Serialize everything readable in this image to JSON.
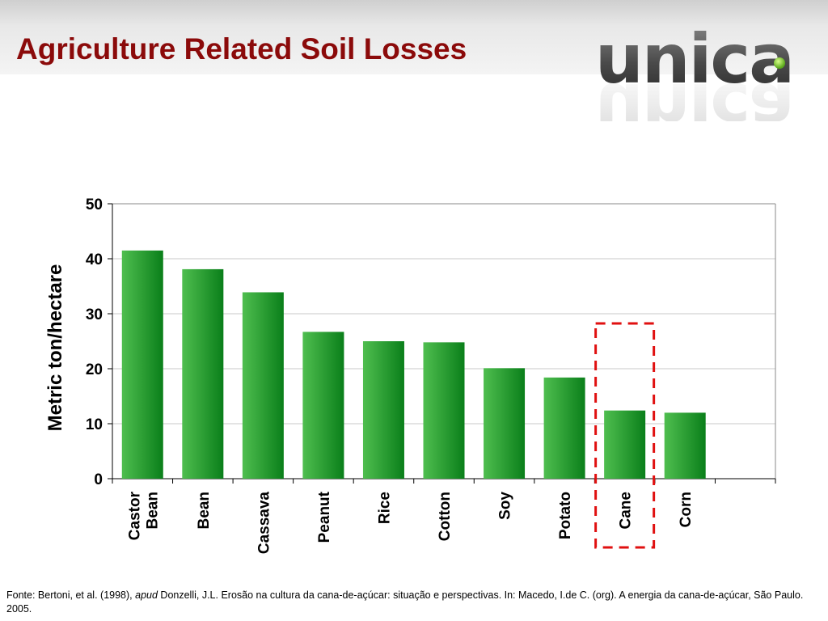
{
  "slide": {
    "title": "Agriculture Related Soil Losses",
    "logo_text": "unica"
  },
  "chart_data": {
    "type": "bar",
    "title": "",
    "xlabel": "",
    "ylabel": "Metric ton/hectare",
    "ylim": [
      0,
      50
    ],
    "yticks": [
      0,
      10,
      20,
      30,
      40,
      50
    ],
    "grid": true,
    "categories": [
      [
        "Castor",
        "Bean"
      ],
      [
        "Bean"
      ],
      [
        "Cassava"
      ],
      [
        "Peanut"
      ],
      [
        "Rice"
      ],
      [
        "Cotton"
      ],
      [
        "Soy"
      ],
      [
        "Potato"
      ],
      [
        "Cane"
      ],
      [
        "Corn"
      ]
    ],
    "values": [
      41.5,
      38.1,
      33.9,
      26.7,
      25.0,
      24.8,
      20.1,
      18.4,
      12.4,
      12.0
    ],
    "highlight": {
      "category_index": 8,
      "style": "red dashed box"
    },
    "colors": {
      "bar_light": "#4fbe4f",
      "bar_dark": "#0a7f1a",
      "highlight": "#e01010",
      "grid": "#c8c8c8"
    }
  },
  "footnote": {
    "prefix": "Fonte: Bertoni, et al. (1998), ",
    "italic": "apud",
    "rest": " Donzelli, J.L. Erosão na cultura da cana-de-açúcar: situação e perspectivas. In: Macedo, I.de C. (org). A energia da cana-de-açúcar, São Paulo. 2005."
  }
}
